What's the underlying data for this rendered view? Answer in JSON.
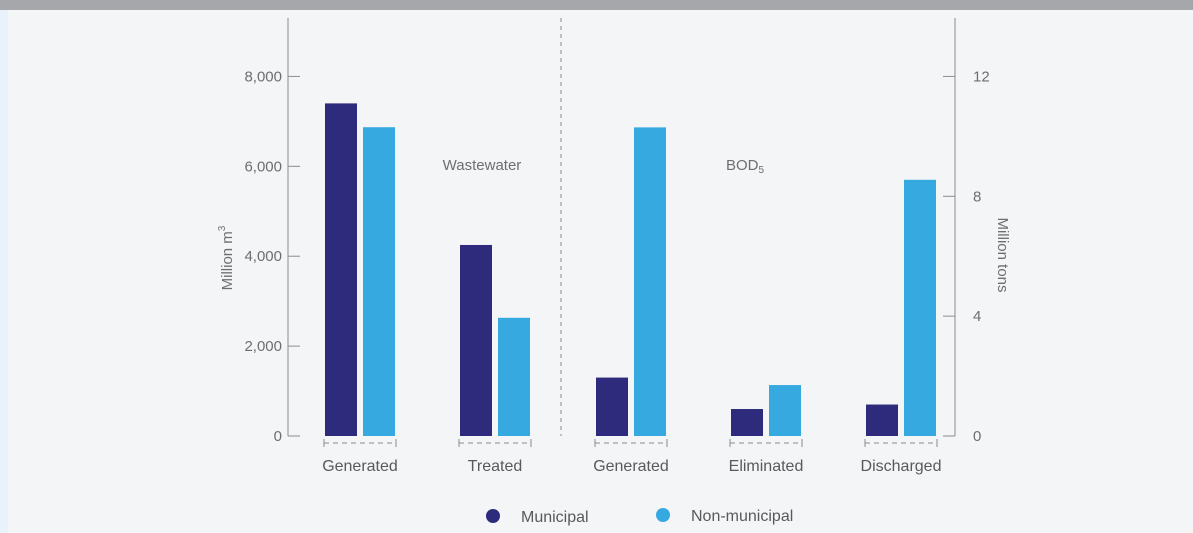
{
  "chart_data": {
    "type": "bar",
    "categories": [
      "Generated",
      "Treated",
      "Generated",
      "Eliminated",
      "Discharged"
    ],
    "groups": [
      {
        "label": "Wastewater",
        "sub": ""
      },
      {
        "label": "BOD",
        "sub": "5"
      }
    ],
    "series": [
      {
        "name": "Municipal",
        "color": "#2e2a7c",
        "values": [
          7400,
          4250,
          1.95,
          0.9,
          1.05
        ]
      },
      {
        "name": "Non-municipal",
        "color": "#36a9e1",
        "values": [
          6870,
          2630,
          10.3,
          1.7,
          8.55
        ]
      }
    ],
    "value_axis_by_category": [
      "left",
      "left",
      "right",
      "right",
      "right"
    ],
    "left_axis": {
      "label": "Million m",
      "label_sup": "3",
      "ylim": [
        0,
        9300
      ],
      "ticks": [
        0,
        2000,
        4000,
        6000,
        8000
      ],
      "tick_labels": [
        "0",
        "2,000",
        "4,000",
        "6,000",
        "8,000"
      ]
    },
    "right_axis": {
      "label": "Million tons",
      "ylim": [
        0,
        13.95
      ],
      "ticks": [
        0,
        4,
        8,
        12
      ],
      "tick_labels": [
        "0",
        "4",
        "8",
        "12"
      ]
    },
    "legend_position": "bottom-center",
    "grid": false
  }
}
